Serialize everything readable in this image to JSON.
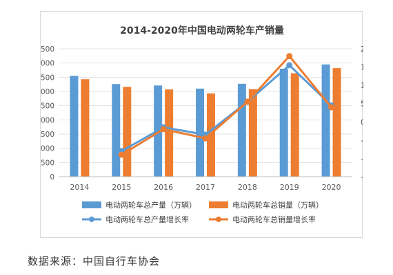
{
  "chart_data": {
    "type": "bar",
    "title": "2014-2020年中国电动两轮车产销量",
    "categories": [
      "2014",
      "2015",
      "2016",
      "2017",
      "2018",
      "2019",
      "2020"
    ],
    "y_left": {
      "min": 0,
      "max": 4500,
      "step": 500,
      "tick_labels": [
        "0",
        "500",
        "1,000",
        "1,500",
        "2,000",
        "2,500",
        "3,000",
        "3,500",
        "4,000",
        "4,500"
      ]
    },
    "y_right": {
      "min": -15,
      "max": 20,
      "step": 5,
      "tick_labels": [
        "-15%",
        "-10%",
        "-5%",
        "0%",
        "5%",
        "10%",
        "15%",
        "20%"
      ]
    },
    "series": [
      {
        "name": "电动两轮车总产量（万辆）",
        "kind": "bar",
        "axis": "left",
        "color": "#5b9bd5",
        "values": [
          3550,
          3260,
          3210,
          3100,
          3270,
          3800,
          3950
        ]
      },
      {
        "name": "电动两轮车总销量（万辆）",
        "kind": "bar",
        "axis": "left",
        "color": "#ed7d31",
        "values": [
          3430,
          3160,
          3070,
          2930,
          3080,
          3640,
          3820
        ]
      },
      {
        "name": "电动两轮车总产量增长率",
        "kind": "line",
        "axis": "right",
        "color": "#5b9bd5",
        "values": [
          null,
          -8,
          -1.5,
          -3.5,
          5.5,
          15.5,
          4.5
        ]
      },
      {
        "name": "电动两轮车总销量增长率",
        "kind": "line",
        "axis": "right",
        "color": "#ed7d31",
        "values": [
          null,
          -9,
          -2,
          -4.5,
          5.5,
          18,
          4
        ]
      }
    ],
    "grid": true,
    "legend_position": "bottom"
  },
  "source_text": "数据来源：中国自行车协会"
}
